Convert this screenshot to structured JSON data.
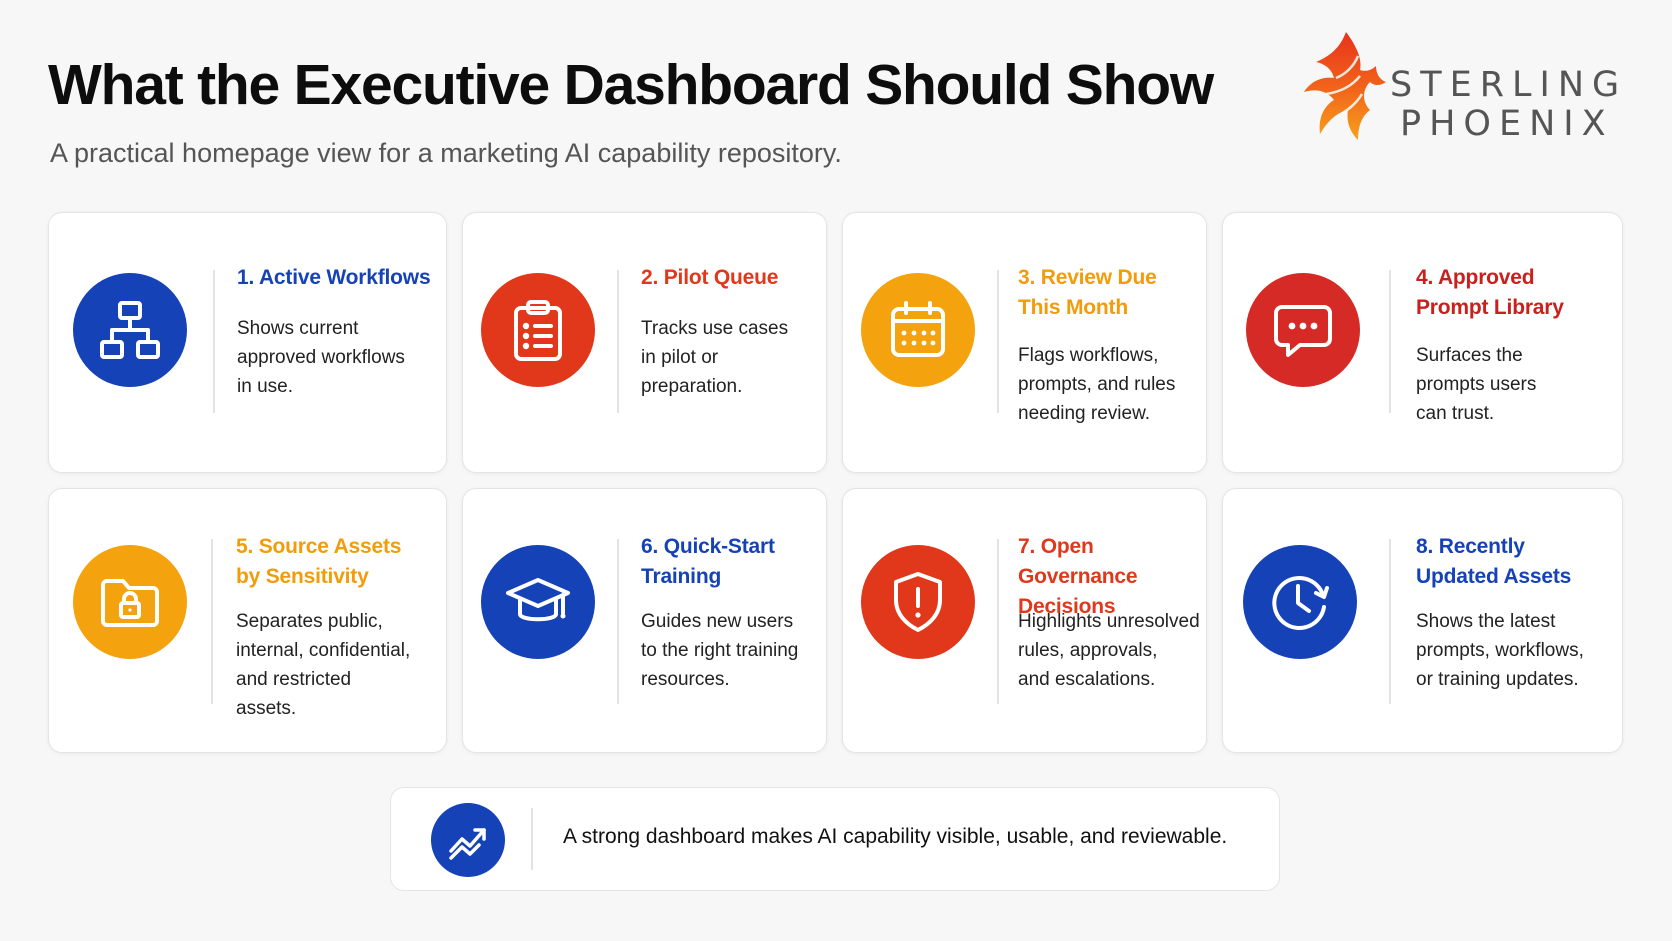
{
  "header": {
    "title": "What the Executive Dashboard Should Show",
    "subtitle": "A practical homepage view for a marketing AI capability repository."
  },
  "logo": {
    "line1": "STERLING",
    "line2": "PHOENIX",
    "icon": "phoenix-logo"
  },
  "cards": [
    {
      "title_lines": [
        "1. Active Workflows"
      ],
      "desc_lines": [
        "Shows current",
        "approved workflows",
        "in use."
      ],
      "icon": "workflow-hierarchy-icon",
      "color": "#1642b8"
    },
    {
      "title_lines": [
        "2. Pilot Queue"
      ],
      "desc_lines": [
        "Tracks use cases",
        "in pilot or",
        "preparation."
      ],
      "icon": "clipboard-list-icon",
      "color": "#e1371a"
    },
    {
      "title_lines": [
        "3. Review Due",
        "This Month"
      ],
      "desc_lines": [
        "Flags workflows,",
        "prompts, and rules",
        "needing review."
      ],
      "icon": "calendar-icon",
      "color": "#f4a20e"
    },
    {
      "title_lines": [
        "4. Approved",
        "Prompt Library"
      ],
      "desc_lines": [
        "Surfaces the",
        "prompts users",
        "can trust."
      ],
      "icon": "chat-bubble-icon",
      "color": "#d52a26"
    },
    {
      "title_lines": [
        "5. Source Assets",
        "by Sensitivity"
      ],
      "desc_lines": [
        "Separates public,",
        "internal, confidential,",
        "and restricted",
        "assets."
      ],
      "icon": "locked-folder-icon",
      "color": "#f4a20e"
    },
    {
      "title_lines": [
        "6. Quick-Start",
        "Training"
      ],
      "desc_lines": [
        "Guides new users",
        "to the right training",
        "resources."
      ],
      "icon": "graduation-cap-icon",
      "color": "#1642b8"
    },
    {
      "title_lines": [
        "7. Open Governance",
        "Decisions"
      ],
      "desc_lines": [
        "Highlights unresolved",
        "rules, approvals,",
        "and escalations."
      ],
      "icon": "shield-alert-icon",
      "color": "#e1371a"
    },
    {
      "title_lines": [
        "8. Recently",
        "Updated Assets"
      ],
      "desc_lines": [
        "Shows the latest",
        "prompts, workflows,",
        "or training updates."
      ],
      "icon": "clock-refresh-icon",
      "color": "#1642b8"
    }
  ],
  "footer": {
    "text": "A strong dashboard makes AI capability visible, usable, and reviewable.",
    "icon": "trending-up-icon"
  }
}
